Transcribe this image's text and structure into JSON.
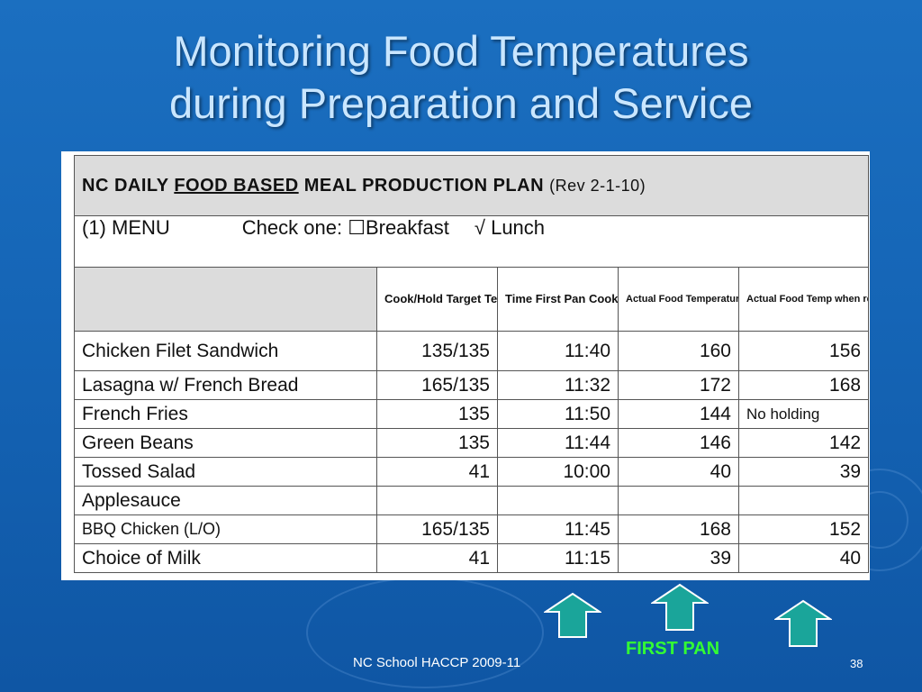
{
  "slide": {
    "title_line1": "Monitoring Food Temperatures",
    "title_line2": "during Preparation and Service",
    "footer": "NC School HACCP 2009-11",
    "page_number": "38",
    "annotation": "FIRST PAN"
  },
  "form": {
    "heading_prefix": "NC DAILY ",
    "heading_underlined": "FOOD BASED",
    "heading_suffix": " MEAL PRODUCTION PLAN",
    "revision": "(Rev 2-1-10)",
    "menu_label": "(1) MENU",
    "check_one": "Check one:",
    "breakfast_box": "☐",
    "breakfast": "Breakfast",
    "lunch_mark": "√",
    "lunch": "Lunch",
    "columns": {
      "target": "Cook/Hold Target Temperature",
      "time": "Time First Pan Cooked/ Prepared",
      "actual_cooked": "Actual Food Temperature once cooked/prepared",
      "actual_removed": "Actual Food Temp when removed from holding"
    },
    "rows": [
      {
        "item": "Chicken Filet Sandwich",
        "target": "135/135",
        "time": "11:40",
        "cooked": "160",
        "removed": "156"
      },
      {
        "item": "Lasagna w/ French Bread",
        "target": "165/135",
        "time": "11:32",
        "cooked": "172",
        "removed": "168"
      },
      {
        "item": "French Fries",
        "target": "135",
        "time": "11:50",
        "cooked": "144",
        "removed": "No holding"
      },
      {
        "item": "Green Beans",
        "target": "135",
        "time": "11:44",
        "cooked": "146",
        "removed": "142"
      },
      {
        "item": "Tossed Salad",
        "target": "41",
        "time": "10:00",
        "cooked": "40",
        "removed": "39"
      },
      {
        "item": "Applesauce",
        "target": "",
        "time": "",
        "cooked": "",
        "removed": ""
      },
      {
        "item": "BBQ Chicken (L/O)",
        "target": "165/135",
        "time": "11:45",
        "cooked": "168",
        "removed": "152"
      },
      {
        "item": "Choice of Milk",
        "target": "41",
        "time": "11:15",
        "cooked": "39",
        "removed": "40"
      }
    ]
  },
  "colors": {
    "background": "#1565b6",
    "title": "#c9e6ff",
    "annotation": "#33ff33",
    "arrow_fill": "#1aa59a"
  },
  "icons": [
    "up-arrow-icon",
    "up-arrow-icon",
    "up-arrow-icon"
  ]
}
